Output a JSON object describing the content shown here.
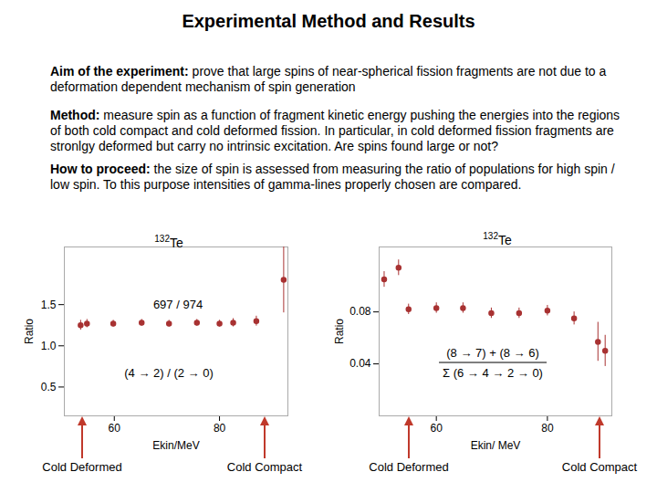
{
  "title": "Experimental Method and Results",
  "paragraphs": [
    {
      "label": "Aim of the experiment:",
      "text": "prove that large spins of near-spherical  fission fragments are not due to a deformation dependent mechanism of spin generation"
    },
    {
      "label": "Method:",
      "text": "measure spin as a function of fragment kinetic energy pushing the energies into the regions of both cold compact and cold deformed fission. In  particular, in cold deformed fission fragments are stronlgy deformed but carry no intrinsic excitation. Are spins found large or not?"
    },
    {
      "label": "How to proceed:",
      "text": "the size of spin is assessed from measuring the ratio of  populations for high spin / low spin. To this purpose intensities of gamma-lines properly chosen are compared."
    }
  ],
  "chart_data": [
    {
      "type": "scatter",
      "title": "132Te",
      "xlabel": "Ekin/MeV",
      "ylabel": "Ratio",
      "xlim": [
        50.5,
        93
      ],
      "xticks": [
        60,
        80
      ],
      "ylim": [
        0.15,
        2.2
      ],
      "yticks": [
        0.5,
        {
          "value": 1,
          "label": "1.0"
        },
        1.5
      ],
      "x": [
        53.6,
        54.8,
        59.8,
        65.2,
        70.4,
        75.7,
        80,
        82.6,
        87,
        92.2
      ],
      "values": [
        1.25,
        1.27,
        1.27,
        1.28,
        1.27,
        1.28,
        1.27,
        1.28,
        1.3,
        1.8
      ],
      "errors": [
        0.06,
        0.05,
        0.04,
        0.04,
        0.04,
        0.04,
        0.04,
        0.05,
        0.06,
        0.4
      ],
      "color": "#a83232",
      "marker": "circle",
      "grid": false,
      "annotations": [
        "697 / 974",
        "(4 → 2) / (2 → 0)"
      ],
      "region_labels": [
        "Cold Deformed",
        "Cold Compact"
      ]
    },
    {
      "type": "scatter",
      "title": "132Te",
      "xlabel": "Ekin/ MeV",
      "ylabel": "Ratio",
      "xlim": [
        49.7,
        91.6
      ],
      "xticks": [
        60,
        80
      ],
      "ylim": [
        0,
        0.13
      ],
      "yticks": [
        0.04,
        0.08
      ],
      "x": [
        50.6,
        53.2,
        55.0,
        60,
        64.8,
        69.9,
        74.9,
        80,
        84.8,
        89.1,
        90.4
      ],
      "values": [
        0.105,
        0.114,
        0.082,
        0.083,
        0.083,
        0.079,
        0.079,
        0.081,
        0.075,
        0.057,
        0.05
      ],
      "errors": [
        0.006,
        0.006,
        0.004,
        0.004,
        0.004,
        0.004,
        0.004,
        0.004,
        0.005,
        0.015,
        0.012
      ],
      "color": "#a83232",
      "marker": "circle",
      "grid": false,
      "annotations": [
        "(8 → 7) + (8 → 6)",
        "Σ (6 → 4 → 2 → 0)"
      ],
      "region_labels": [
        "Cold Deformed",
        "Cold Compact"
      ]
    }
  ]
}
